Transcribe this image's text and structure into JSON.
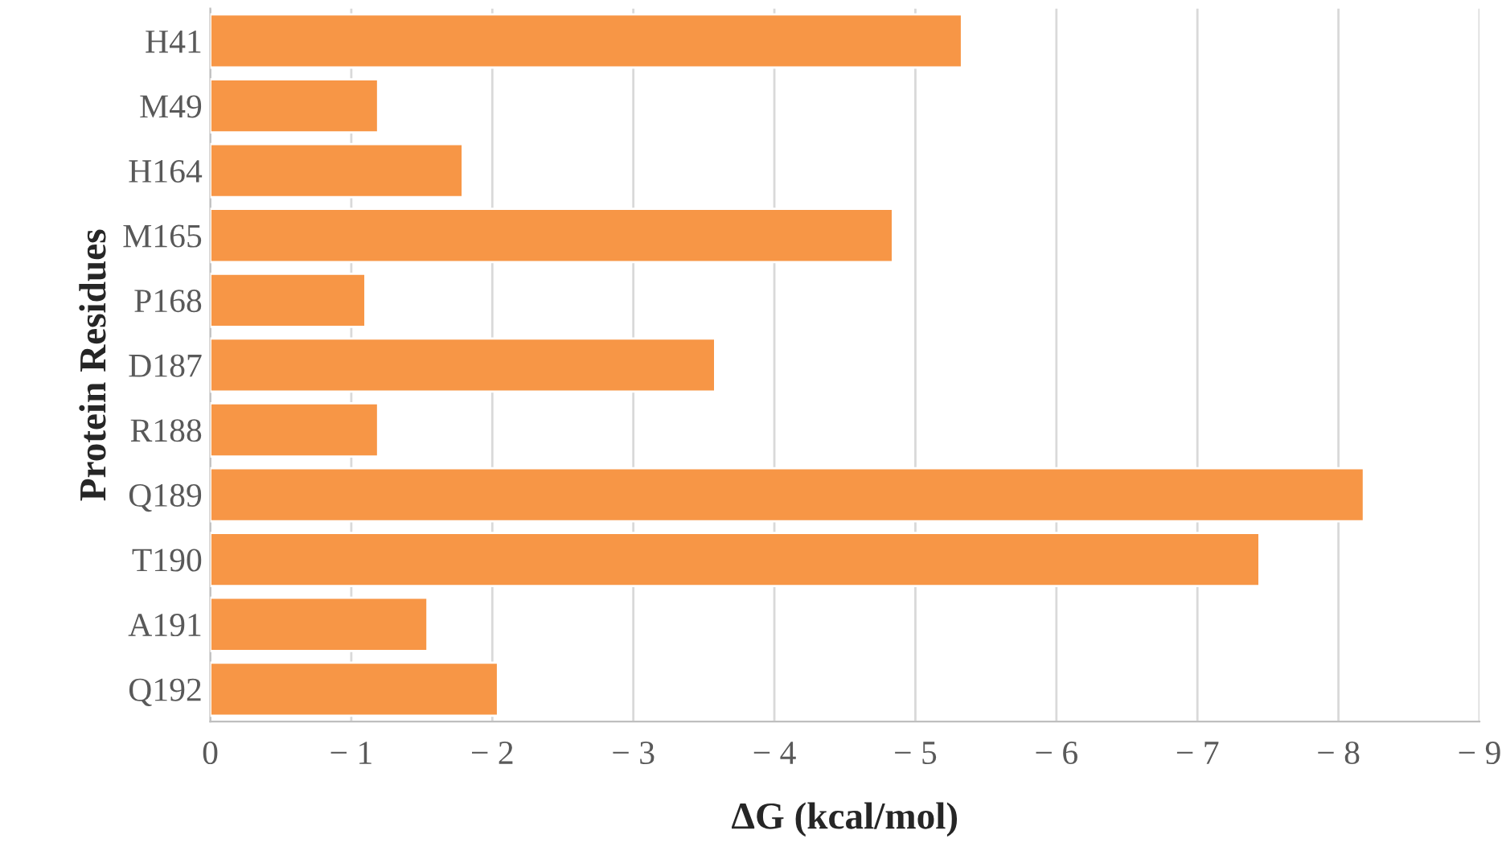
{
  "chart_data": {
    "type": "bar",
    "orientation": "horizontal",
    "xlabel": "ΔG (kcal/mol)",
    "ylabel": "Protein Residues",
    "categories": [
      "H41",
      "M49",
      "H164",
      "M165",
      "P168",
      "D187",
      "R188",
      "Q189",
      "T190",
      "A191",
      "Q192"
    ],
    "values": [
      -5.33,
      -1.19,
      -1.79,
      -4.84,
      -1.1,
      -3.58,
      -1.19,
      -8.18,
      -7.44,
      -1.54,
      -2.04
    ],
    "color": "#f79646",
    "xlim": [
      0,
      -9
    ],
    "xticks": [
      0,
      {
        "value": -1,
        "label": "− 1"
      },
      {
        "value": -2,
        "label": "− 2"
      },
      {
        "value": -3,
        "label": "− 3"
      },
      {
        "value": -4,
        "label": "− 4"
      },
      {
        "value": -5,
        "label": "− 5"
      },
      {
        "value": -6,
        "label": "− 6"
      },
      {
        "value": -7,
        "label": "− 7"
      },
      {
        "value": -8,
        "label": "− 8"
      },
      {
        "value": -9,
        "label": "− 9"
      }
    ],
    "grid": "x"
  }
}
